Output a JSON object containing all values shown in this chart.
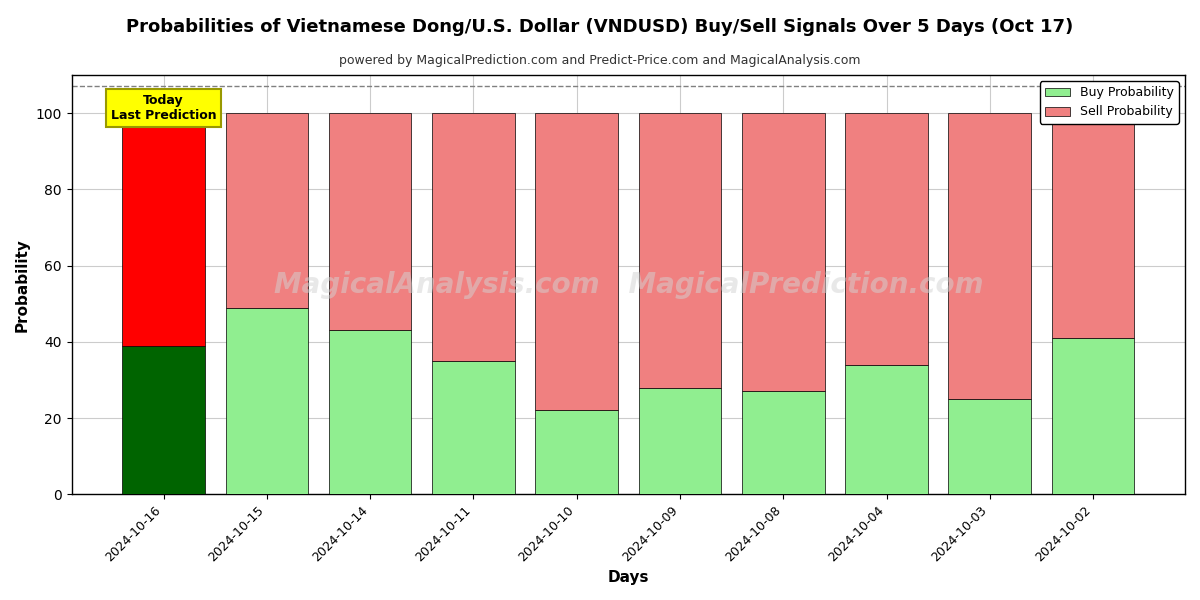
{
  "title": "Probabilities of Vietnamese Dong/U.S. Dollar (VNDUSD) Buy/Sell Signals Over 5 Days (Oct 17)",
  "subtitle": "powered by MagicalPrediction.com and Predict-Price.com and MagicalAnalysis.com",
  "xlabel": "Days",
  "ylabel": "Probability",
  "categories": [
    "2024-10-16",
    "2024-10-15",
    "2024-10-14",
    "2024-10-11",
    "2024-10-10",
    "2024-10-09",
    "2024-10-08",
    "2024-10-04",
    "2024-10-03",
    "2024-10-02"
  ],
  "buy_values": [
    39,
    49,
    43,
    35,
    22,
    28,
    27,
    34,
    25,
    41
  ],
  "sell_values": [
    61,
    51,
    57,
    65,
    78,
    72,
    73,
    66,
    75,
    59
  ],
  "buy_color_today": "#006400",
  "sell_color_today": "#FF0000",
  "buy_color_normal": "#90EE90",
  "sell_color_normal": "#F08080",
  "today_label": "Today\nLast Prediction",
  "today_box_color": "#FFFF00",
  "today_box_edge": "#FFD700",
  "legend_buy_label": "Buy Probability",
  "legend_sell_label": "Sell Probability",
  "ylim": [
    0,
    110
  ],
  "yticks": [
    0,
    20,
    40,
    60,
    80,
    100
  ],
  "watermark_text": "MagicalAnalysis.com   MagicalPrediction.com",
  "dashed_line_y": 107,
  "background_color": "#ffffff",
  "grid_color": "#cccccc"
}
